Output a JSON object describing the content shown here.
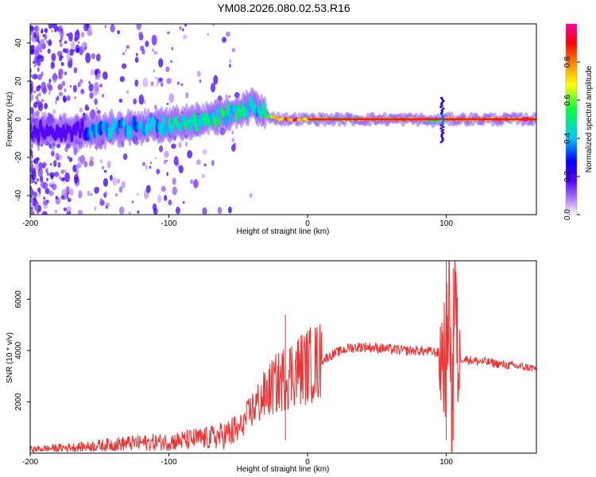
{
  "figure": {
    "title": "YM08.2026.080.02.53.R16"
  },
  "chart_data": [
    {
      "type": "heatmap",
      "title": "YM08.2026.080.02.53.R16",
      "xlabel": "Height of straight line (km)",
      "ylabel": "Frequency (Hz)",
      "xlim": [
        -200,
        165
      ],
      "ylim": [
        -50,
        50
      ],
      "x_ticks": [
        -200,
        -100,
        0,
        100
      ],
      "y_ticks": [
        -40,
        -20,
        0,
        20,
        40
      ],
      "colorbar": {
        "label": "Normalized spectral amplitude",
        "range": [
          0,
          1
        ],
        "ticks": [
          "0.0",
          "0.2",
          "0.4",
          "0.6",
          "0.8"
        ],
        "colormap": [
          "#ffffff",
          "#7a00ff",
          "#0000ff",
          "#00c8ff",
          "#00ff00",
          "#ffff00",
          "#ff8000",
          "#ff0000",
          "#ff0080"
        ]
      },
      "description_track": {
        "x": [
          -160,
          -140,
          -120,
          -100,
          -80,
          -60,
          -45,
          -40,
          -30,
          -20,
          -10,
          0,
          20,
          50,
          80,
          90,
          100,
          120,
          165
        ],
        "center_hz": [
          -6,
          -5,
          -4,
          -3,
          -1,
          2,
          5,
          8,
          2,
          0,
          0,
          0,
          0,
          0,
          0,
          -1,
          0,
          0,
          0
        ],
        "amplitude": [
          0.35,
          0.4,
          0.4,
          0.45,
          0.5,
          0.5,
          0.5,
          0.4,
          0.6,
          0.8,
          0.9,
          0.7,
          0.6,
          0.75,
          0.8,
          0.5,
          0.7,
          0.8,
          0.85
        ]
      }
    },
    {
      "type": "line",
      "xlabel": "Height of straight line (km)",
      "ylabel": "SNR (10 * v/v)",
      "xlim": [
        -200,
        165
      ],
      "ylim": [
        0,
        7500
      ],
      "x_ticks": [
        -200,
        -100,
        0,
        100
      ],
      "y_ticks": [
        2000,
        4000,
        6000
      ],
      "color": "#ee3030",
      "series": [
        {
          "x": [
            -200,
            -180,
            -160,
            -150,
            -140,
            -130,
            -120,
            -110,
            -100,
            -90,
            -80,
            -70,
            -60,
            -50,
            -45,
            -40,
            -35,
            -30,
            -25,
            -20,
            -15,
            -10,
            -5,
            0,
            5,
            10,
            20,
            30,
            40,
            50,
            60,
            70,
            80,
            90,
            95,
            100,
            102,
            104,
            106,
            108,
            110,
            120,
            130,
            140,
            150,
            165
          ],
          "values": [
            150,
            200,
            250,
            300,
            350,
            380,
            400,
            420,
            450,
            500,
            550,
            600,
            700,
            900,
            1300,
            1700,
            2000,
            2300,
            2600,
            2800,
            3000,
            3200,
            3300,
            3400,
            3500,
            3600,
            3900,
            4100,
            4150,
            4100,
            4050,
            4000,
            4000,
            3950,
            3900,
            3800,
            6500,
            1000,
            6800,
            3800,
            3700,
            3600,
            3550,
            3450,
            3400,
            3300
          ]
        }
      ],
      "spikes": [
        {
          "x": -16,
          "value": 5400
        },
        {
          "x": 100,
          "value": 7500
        },
        {
          "x": 105,
          "value": 7200
        }
      ]
    }
  ]
}
